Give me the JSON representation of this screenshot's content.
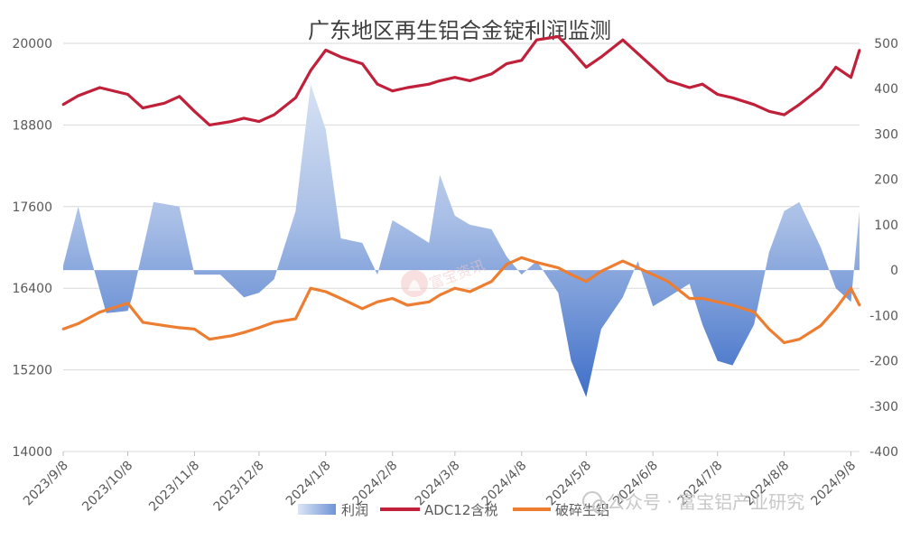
{
  "chart_data": {
    "type": "line",
    "title": "广东地区再生铝合金锭利润监测",
    "x_labels": [
      "2023/9/8",
      "2023/10/8",
      "2023/11/8",
      "2023/12/8",
      "2024/1/8",
      "2024/2/8",
      "2024/3/8",
      "2024/4/8",
      "2024/5/8",
      "2024/6/8",
      "2024/7/8",
      "2024/8/8",
      "2024/9/8"
    ],
    "y_left": {
      "ticks": [
        14000,
        15200,
        16400,
        17600,
        18800,
        20000
      ],
      "range": [
        14000,
        20000
      ]
    },
    "y_right": {
      "ticks": [
        -400,
        -300,
        -200,
        -100,
        0,
        100,
        200,
        300,
        400,
        500
      ],
      "range": [
        -400,
        500
      ]
    },
    "legend_position": "bottom",
    "series": [
      {
        "name": "利润",
        "kind": "area",
        "axis": "right",
        "color": "#8ea9db",
        "x": [
          "2023/9/8",
          "2023/9/15",
          "2023/9/20",
          "2023/9/28",
          "2023/10/8",
          "2023/10/10",
          "2023/10/20",
          "2023/11/1",
          "2023/11/8",
          "2023/11/20",
          "2023/12/1",
          "2023/12/8",
          "2023/12/15",
          "2023/12/25",
          "2024/1/1",
          "2024/1/8",
          "2024/1/15",
          "2024/1/25",
          "2024/2/1",
          "2024/2/8",
          "2024/2/15",
          "2024/2/25",
          "2024/3/1",
          "2024/3/8",
          "2024/3/15",
          "2024/3/25",
          "2024/4/1",
          "2024/4/8",
          "2024/4/15",
          "2024/4/25",
          "2024/5/1",
          "2024/5/8",
          "2024/5/15",
          "2024/5/25",
          "2024/6/1",
          "2024/6/8",
          "2024/6/15",
          "2024/6/25",
          "2024/7/1",
          "2024/7/8",
          "2024/7/15",
          "2024/7/25",
          "2024/8/1",
          "2024/8/8",
          "2024/8/15",
          "2024/8/25",
          "2024/9/1",
          "2024/9/8",
          "2024/9/12"
        ],
        "values": [
          10,
          140,
          40,
          -95,
          -90,
          -60,
          150,
          140,
          -10,
          -10,
          -60,
          -50,
          -20,
          130,
          410,
          310,
          70,
          60,
          -10,
          110,
          90,
          60,
          210,
          120,
          100,
          90,
          30,
          -10,
          20,
          -50,
          -200,
          -280,
          -130,
          -60,
          20,
          -80,
          -60,
          -30,
          -120,
          -200,
          -210,
          -120,
          40,
          130,
          150,
          50,
          -40,
          -70,
          130
        ]
      },
      {
        "name": "ADC12含税",
        "kind": "line",
        "axis": "left",
        "color": "#c0203a",
        "x": [
          "2023/9/8",
          "2023/9/15",
          "2023/9/25",
          "2023/10/8",
          "2023/10/15",
          "2023/10/25",
          "2023/11/1",
          "2023/11/8",
          "2023/11/15",
          "2023/11/25",
          "2023/12/1",
          "2023/12/8",
          "2023/12/15",
          "2023/12/25",
          "2024/1/1",
          "2024/1/8",
          "2024/1/15",
          "2024/1/25",
          "2024/2/1",
          "2024/2/8",
          "2024/2/15",
          "2024/2/25",
          "2024/3/1",
          "2024/3/8",
          "2024/3/15",
          "2024/3/25",
          "2024/4/1",
          "2024/4/8",
          "2024/4/15",
          "2024/4/25",
          "2024/5/1",
          "2024/5/8",
          "2024/5/15",
          "2024/5/25",
          "2024/6/1",
          "2024/6/8",
          "2024/6/15",
          "2024/6/25",
          "2024/7/1",
          "2024/7/8",
          "2024/7/15",
          "2024/7/25",
          "2024/8/1",
          "2024/8/8",
          "2024/8/15",
          "2024/8/25",
          "2024/9/1",
          "2024/9/8",
          "2024/9/12"
        ],
        "values": [
          19100,
          19230,
          19350,
          19250,
          19050,
          19120,
          19220,
          19000,
          18800,
          18850,
          18900,
          18850,
          18950,
          19200,
          19600,
          19900,
          19800,
          19700,
          19400,
          19300,
          19350,
          19400,
          19450,
          19500,
          19450,
          19550,
          19700,
          19750,
          20050,
          20100,
          19900,
          19650,
          19800,
          20050,
          19850,
          19650,
          19450,
          19350,
          19400,
          19250,
          19200,
          19100,
          19000,
          18950,
          19100,
          19350,
          19650,
          19500,
          19900
        ]
      },
      {
        "name": "破碎生铝",
        "kind": "line",
        "axis": "left",
        "color": "#ed7d31",
        "x": [
          "2023/9/8",
          "2023/9/15",
          "2023/9/25",
          "2023/10/8",
          "2023/10/15",
          "2023/10/25",
          "2023/11/1",
          "2023/11/8",
          "2023/11/15",
          "2023/11/25",
          "2023/12/1",
          "2023/12/8",
          "2023/12/15",
          "2023/12/25",
          "2024/1/1",
          "2024/1/8",
          "2024/1/15",
          "2024/1/25",
          "2024/2/1",
          "2024/2/8",
          "2024/2/15",
          "2024/2/25",
          "2024/3/1",
          "2024/3/8",
          "2024/3/15",
          "2024/3/25",
          "2024/4/1",
          "2024/4/8",
          "2024/4/15",
          "2024/4/25",
          "2024/5/1",
          "2024/5/8",
          "2024/5/15",
          "2024/5/25",
          "2024/6/1",
          "2024/6/8",
          "2024/6/15",
          "2024/6/25",
          "2024/7/1",
          "2024/7/8",
          "2024/7/15",
          "2024/7/25",
          "2024/8/1",
          "2024/8/8",
          "2024/8/15",
          "2024/8/25",
          "2024/9/1",
          "2024/9/8",
          "2024/9/12"
        ],
        "values": [
          15800,
          15880,
          16050,
          16180,
          15900,
          15850,
          15820,
          15800,
          15650,
          15700,
          15750,
          15820,
          15900,
          15950,
          16400,
          16350,
          16250,
          16100,
          16200,
          16250,
          16150,
          16200,
          16300,
          16400,
          16350,
          16500,
          16750,
          16850,
          16780,
          16700,
          16600,
          16500,
          16650,
          16800,
          16700,
          16600,
          16500,
          16250,
          16250,
          16200,
          16150,
          16050,
          15800,
          15600,
          15650,
          15850,
          16100,
          16400,
          16150
        ]
      }
    ]
  },
  "legend": {
    "profit": "利润",
    "adc12": "ADC12含税",
    "scrap": "破碎生铝"
  },
  "watermark": {
    "center": "富宝资讯",
    "bottom": "公众号 · 富宝铝产业研究"
  }
}
